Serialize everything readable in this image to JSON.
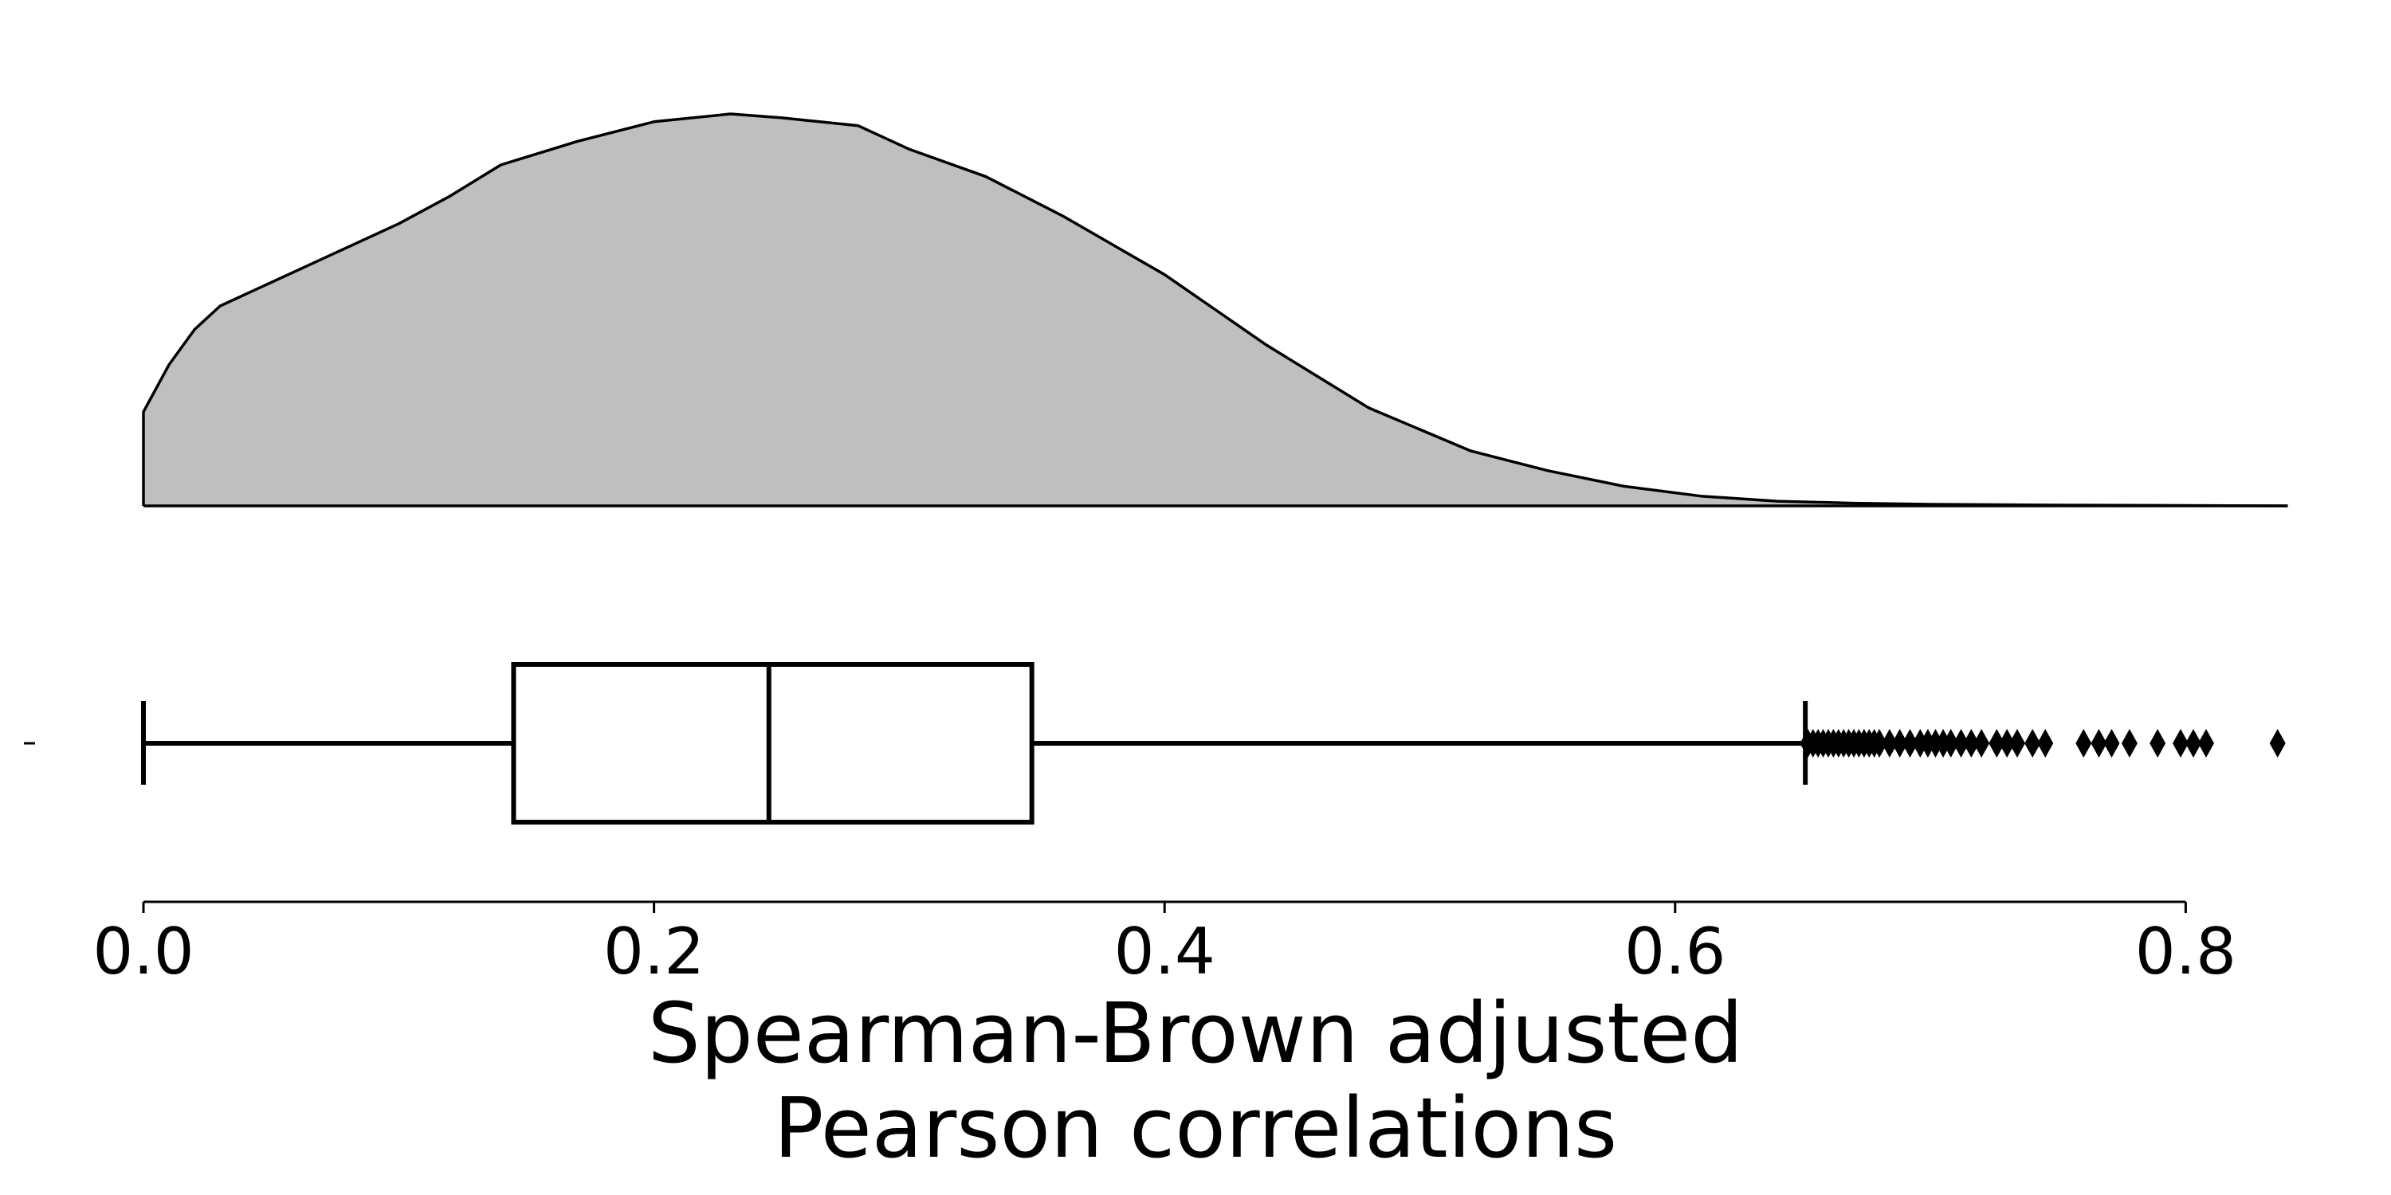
{
  "chart_data": {
    "type": "raincloud",
    "title": "",
    "xlabel": [
      "Spearman-Brown adjusted",
      "Pearson correlations"
    ],
    "ylabel": "",
    "xlim": [
      0.0,
      0.84
    ],
    "xticks": [
      "0.0",
      "0.2",
      "0.4",
      "0.6",
      "0.8"
    ],
    "xtick_values": [
      0.0,
      0.2,
      0.4,
      0.6,
      0.8
    ],
    "grid": false,
    "colors": {
      "density_fill": "#bfbfbf",
      "line": "#000000",
      "box_fill": "#ffffff"
    },
    "density": {
      "x": [
        0.0,
        0.01,
        0.02,
        0.03,
        0.04,
        0.06,
        0.08,
        0.1,
        0.12,
        0.14,
        0.17,
        0.2,
        0.23,
        0.25,
        0.28,
        0.3,
        0.33,
        0.36,
        0.4,
        0.44,
        0.48,
        0.52,
        0.55,
        0.58,
        0.61,
        0.64,
        0.67,
        0.7,
        0.75,
        0.8,
        0.84
      ],
      "y": [
        0.24,
        0.36,
        0.45,
        0.51,
        0.54,
        0.6,
        0.66,
        0.72,
        0.79,
        0.87,
        0.93,
        0.98,
        1.0,
        0.99,
        0.97,
        0.91,
        0.84,
        0.74,
        0.59,
        0.41,
        0.25,
        0.14,
        0.09,
        0.05,
        0.025,
        0.012,
        0.007,
        0.004,
        0.002,
        0.001,
        0.0
      ]
    },
    "box": {
      "whisker_low": 0.0,
      "q1": 0.145,
      "median": 0.245,
      "q3": 0.348,
      "whisker_high": 0.651
    },
    "outliers": [
      0.652,
      0.654,
      0.656,
      0.658,
      0.66,
      0.662,
      0.664,
      0.666,
      0.668,
      0.67,
      0.672,
      0.674,
      0.676,
      0.678,
      0.68,
      0.684,
      0.688,
      0.692,
      0.696,
      0.699,
      0.702,
      0.705,
      0.708,
      0.712,
      0.716,
      0.72,
      0.726,
      0.73,
      0.734,
      0.74,
      0.745,
      0.76,
      0.766,
      0.771,
      0.778,
      0.789,
      0.798,
      0.803,
      0.808,
      0.836
    ]
  }
}
